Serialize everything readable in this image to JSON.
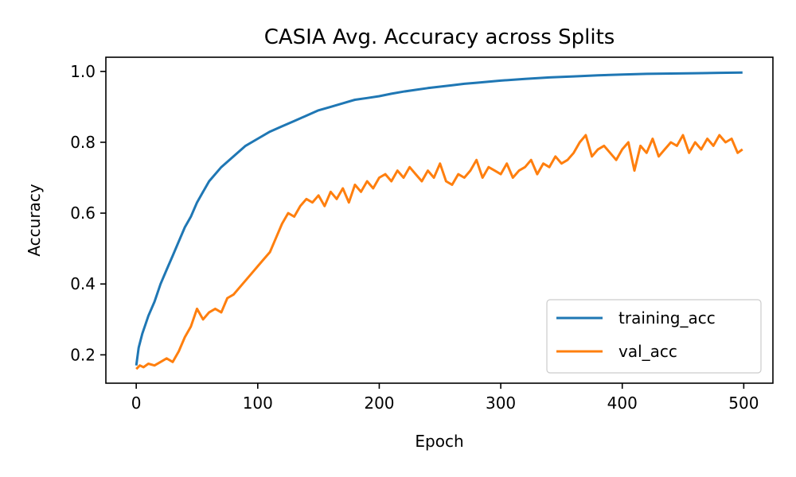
{
  "chart_data": {
    "type": "line",
    "title": "CASIA Avg. Accuracy across Splits",
    "xlabel": "Epoch",
    "ylabel": "Accuracy",
    "xlim": [
      -25,
      524
    ],
    "ylim": [
      0.12,
      1.04
    ],
    "xticks": [
      0,
      100,
      200,
      300,
      400,
      500
    ],
    "xtick_labels": [
      "0",
      "100",
      "200",
      "300",
      "400",
      "500"
    ],
    "yticks": [
      0.2,
      0.4,
      0.6,
      0.8,
      1.0
    ],
    "ytick_labels": [
      "0.2",
      "0.4",
      "0.6",
      "0.8",
      "1.0"
    ],
    "grid": false,
    "legend": {
      "position": "lower-right"
    },
    "series": [
      {
        "name": "training_acc",
        "color": "#1f77b4",
        "x": [
          0,
          2,
          5,
          8,
          10,
          15,
          20,
          25,
          30,
          35,
          40,
          45,
          50,
          55,
          60,
          70,
          80,
          90,
          100,
          110,
          120,
          130,
          140,
          150,
          160,
          170,
          180,
          190,
          200,
          210,
          220,
          230,
          240,
          250,
          260,
          270,
          280,
          290,
          300,
          320,
          340,
          360,
          380,
          400,
          420,
          440,
          460,
          480,
          499
        ],
        "y": [
          0.17,
          0.22,
          0.26,
          0.29,
          0.31,
          0.35,
          0.4,
          0.44,
          0.48,
          0.52,
          0.56,
          0.59,
          0.63,
          0.66,
          0.69,
          0.73,
          0.76,
          0.79,
          0.81,
          0.83,
          0.845,
          0.86,
          0.875,
          0.89,
          0.9,
          0.91,
          0.92,
          0.925,
          0.93,
          0.937,
          0.943,
          0.948,
          0.953,
          0.957,
          0.961,
          0.965,
          0.968,
          0.971,
          0.974,
          0.979,
          0.983,
          0.986,
          0.989,
          0.991,
          0.993,
          0.994,
          0.995,
          0.996,
          0.997
        ]
      },
      {
        "name": "val_acc",
        "color": "#ff7f0e",
        "x": [
          0,
          3,
          6,
          10,
          15,
          20,
          25,
          30,
          35,
          40,
          45,
          50,
          55,
          60,
          65,
          70,
          75,
          80,
          85,
          90,
          95,
          100,
          105,
          110,
          115,
          120,
          125,
          130,
          135,
          140,
          145,
          150,
          155,
          160,
          165,
          170,
          175,
          180,
          185,
          190,
          195,
          200,
          205,
          210,
          215,
          220,
          225,
          230,
          235,
          240,
          245,
          250,
          255,
          260,
          265,
          270,
          275,
          280,
          285,
          290,
          295,
          300,
          305,
          310,
          315,
          320,
          325,
          330,
          335,
          340,
          345,
          350,
          355,
          360,
          365,
          370,
          375,
          380,
          385,
          390,
          395,
          400,
          405,
          410,
          415,
          420,
          425,
          430,
          435,
          440,
          445,
          450,
          455,
          460,
          465,
          470,
          475,
          480,
          485,
          490,
          495,
          499
        ],
        "y": [
          0.16,
          0.17,
          0.165,
          0.175,
          0.17,
          0.18,
          0.19,
          0.18,
          0.21,
          0.25,
          0.28,
          0.33,
          0.3,
          0.32,
          0.33,
          0.32,
          0.36,
          0.37,
          0.39,
          0.41,
          0.43,
          0.45,
          0.47,
          0.49,
          0.53,
          0.57,
          0.6,
          0.59,
          0.62,
          0.64,
          0.63,
          0.65,
          0.62,
          0.66,
          0.64,
          0.67,
          0.63,
          0.68,
          0.66,
          0.69,
          0.67,
          0.7,
          0.71,
          0.69,
          0.72,
          0.7,
          0.73,
          0.71,
          0.69,
          0.72,
          0.7,
          0.74,
          0.69,
          0.68,
          0.71,
          0.7,
          0.72,
          0.75,
          0.7,
          0.73,
          0.72,
          0.71,
          0.74,
          0.7,
          0.72,
          0.73,
          0.75,
          0.71,
          0.74,
          0.73,
          0.76,
          0.74,
          0.75,
          0.77,
          0.8,
          0.82,
          0.76,
          0.78,
          0.79,
          0.77,
          0.75,
          0.78,
          0.8,
          0.72,
          0.79,
          0.77,
          0.81,
          0.76,
          0.78,
          0.8,
          0.79,
          0.82,
          0.77,
          0.8,
          0.78,
          0.81,
          0.79,
          0.82,
          0.8,
          0.81,
          0.77,
          0.78
        ]
      }
    ]
  }
}
